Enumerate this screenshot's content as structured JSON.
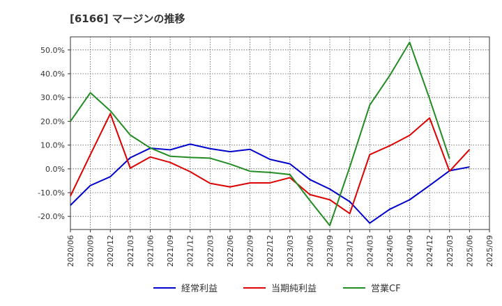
{
  "chart_data": {
    "type": "line",
    "title": "[6166]  マージンの推移",
    "xlabel": "",
    "ylabel": "",
    "ylim": [
      -25.5,
      55.5
    ],
    "y_ticks": [
      "50.0%",
      "40.0%",
      "30.0%",
      "20.0%",
      "10.0%",
      "0.0%",
      "-10.0%",
      "-20.0%"
    ],
    "y_tick_values": [
      50,
      40,
      30,
      20,
      10,
      0,
      -10,
      -20
    ],
    "x_ticks": [
      "2020/06",
      "2020/09",
      "2020/12",
      "2021/03",
      "2021/06",
      "2021/09",
      "2021/12",
      "2022/03",
      "2022/06",
      "2022/09",
      "2022/12",
      "2023/03",
      "2023/06",
      "2023/09",
      "2023/12",
      "2024/03",
      "2024/06",
      "2024/09",
      "2024/12",
      "2025/03",
      "2025/06",
      "2025/09"
    ],
    "grid": true,
    "legend_position": "bottom",
    "series": [
      {
        "name": "経常利益",
        "color": "#0000cc",
        "values": [
          -15.3,
          -7.0,
          -3.3,
          4.7,
          8.7,
          8.0,
          10.4,
          8.5,
          7.2,
          8.2,
          4.0,
          2.1,
          -4.5,
          -8.5,
          -13.8,
          -22.8,
          -17.0,
          -13.0,
          -7.0,
          -0.8,
          0.8,
          null
        ]
      },
      {
        "name": "当期純利益",
        "color": "#dd0000",
        "values": [
          -11.4,
          6.0,
          23.2,
          0.3,
          5.0,
          2.7,
          -1.2,
          -6.1,
          -7.6,
          -5.9,
          -5.9,
          -3.7,
          -10.8,
          -13.0,
          -18.8,
          6.0,
          9.7,
          14.1,
          21.4,
          -1.0,
          8.1,
          null
        ]
      },
      {
        "name": "営業CF",
        "color": "#228b22",
        "values": [
          20.0,
          32.0,
          24.4,
          14.2,
          8.8,
          5.3,
          4.8,
          4.5,
          2.0,
          -1.0,
          -1.5,
          -2.4,
          -13.3,
          -23.8,
          0.8,
          26.8,
          39.2,
          53.2,
          29.5,
          4.3,
          null,
          null
        ]
      }
    ]
  }
}
